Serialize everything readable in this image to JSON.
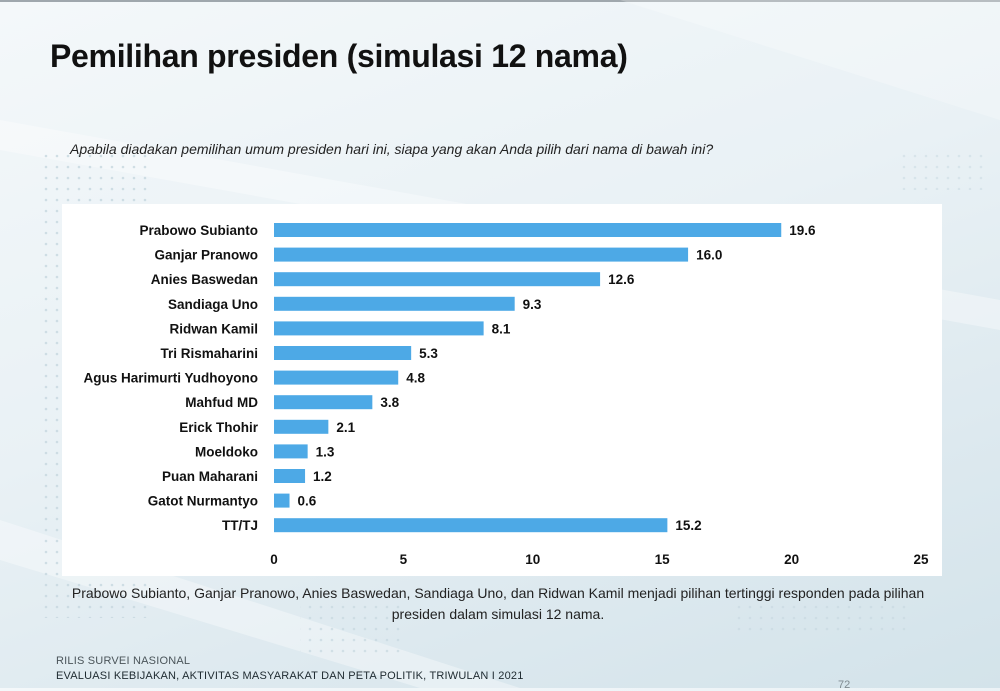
{
  "slide": {
    "title": "Pemilihan presiden (simulasi 12 nama)",
    "question": "Apabila diadakan pemilihan umum presiden hari ini, siapa yang akan Anda pilih dari nama di bawah ini?",
    "caption": "Prabowo Subianto, Ganjar Pranowo, Anies Baswedan, Sandiaga Uno, dan Ridwan Kamil menjadi pilihan tertinggi responden pada pilihan presiden dalam simulasi 12 nama.",
    "footer_line1": "RILIS SURVEI NASIONAL",
    "footer_line2": "EVALUASI KEBIJAKAN, AKTIVITAS MASYARAKAT DAN PETA POLITIK, TRIWULAN I 2021",
    "page_number": "72"
  },
  "colors": {
    "bar": "#4da9e6",
    "text": "#111111"
  },
  "chart_data": {
    "type": "bar",
    "orientation": "horizontal",
    "categories": [
      "Prabowo Subianto",
      "Ganjar Pranowo",
      "Anies Baswedan",
      "Sandiaga Uno",
      "Ridwan Kamil",
      "Tri Rismaharini",
      "Agus Harimurti Yudhoyono",
      "Mahfud MD",
      "Erick Thohir",
      "Moeldoko",
      "Puan Maharani",
      "Gatot Nurmantyo",
      "TT/TJ"
    ],
    "values": [
      19.6,
      16.0,
      12.6,
      9.3,
      8.1,
      5.3,
      4.8,
      3.8,
      2.1,
      1.3,
      1.2,
      0.6,
      15.2
    ],
    "value_labels": [
      "19.6",
      "16.0",
      "12.6",
      "9.3",
      "8.1",
      "5.3",
      "4.8",
      "3.8",
      "2.1",
      "1.3",
      "1.2",
      "0.6",
      "15.2"
    ],
    "xlim": [
      0,
      25
    ],
    "xticks": [
      0,
      5,
      10,
      15,
      20,
      25
    ],
    "xtick_labels": [
      "0",
      "5",
      "10",
      "15",
      "20",
      "25"
    ],
    "title": "",
    "xlabel": "",
    "ylabel": "",
    "grid": false,
    "legend": false
  }
}
